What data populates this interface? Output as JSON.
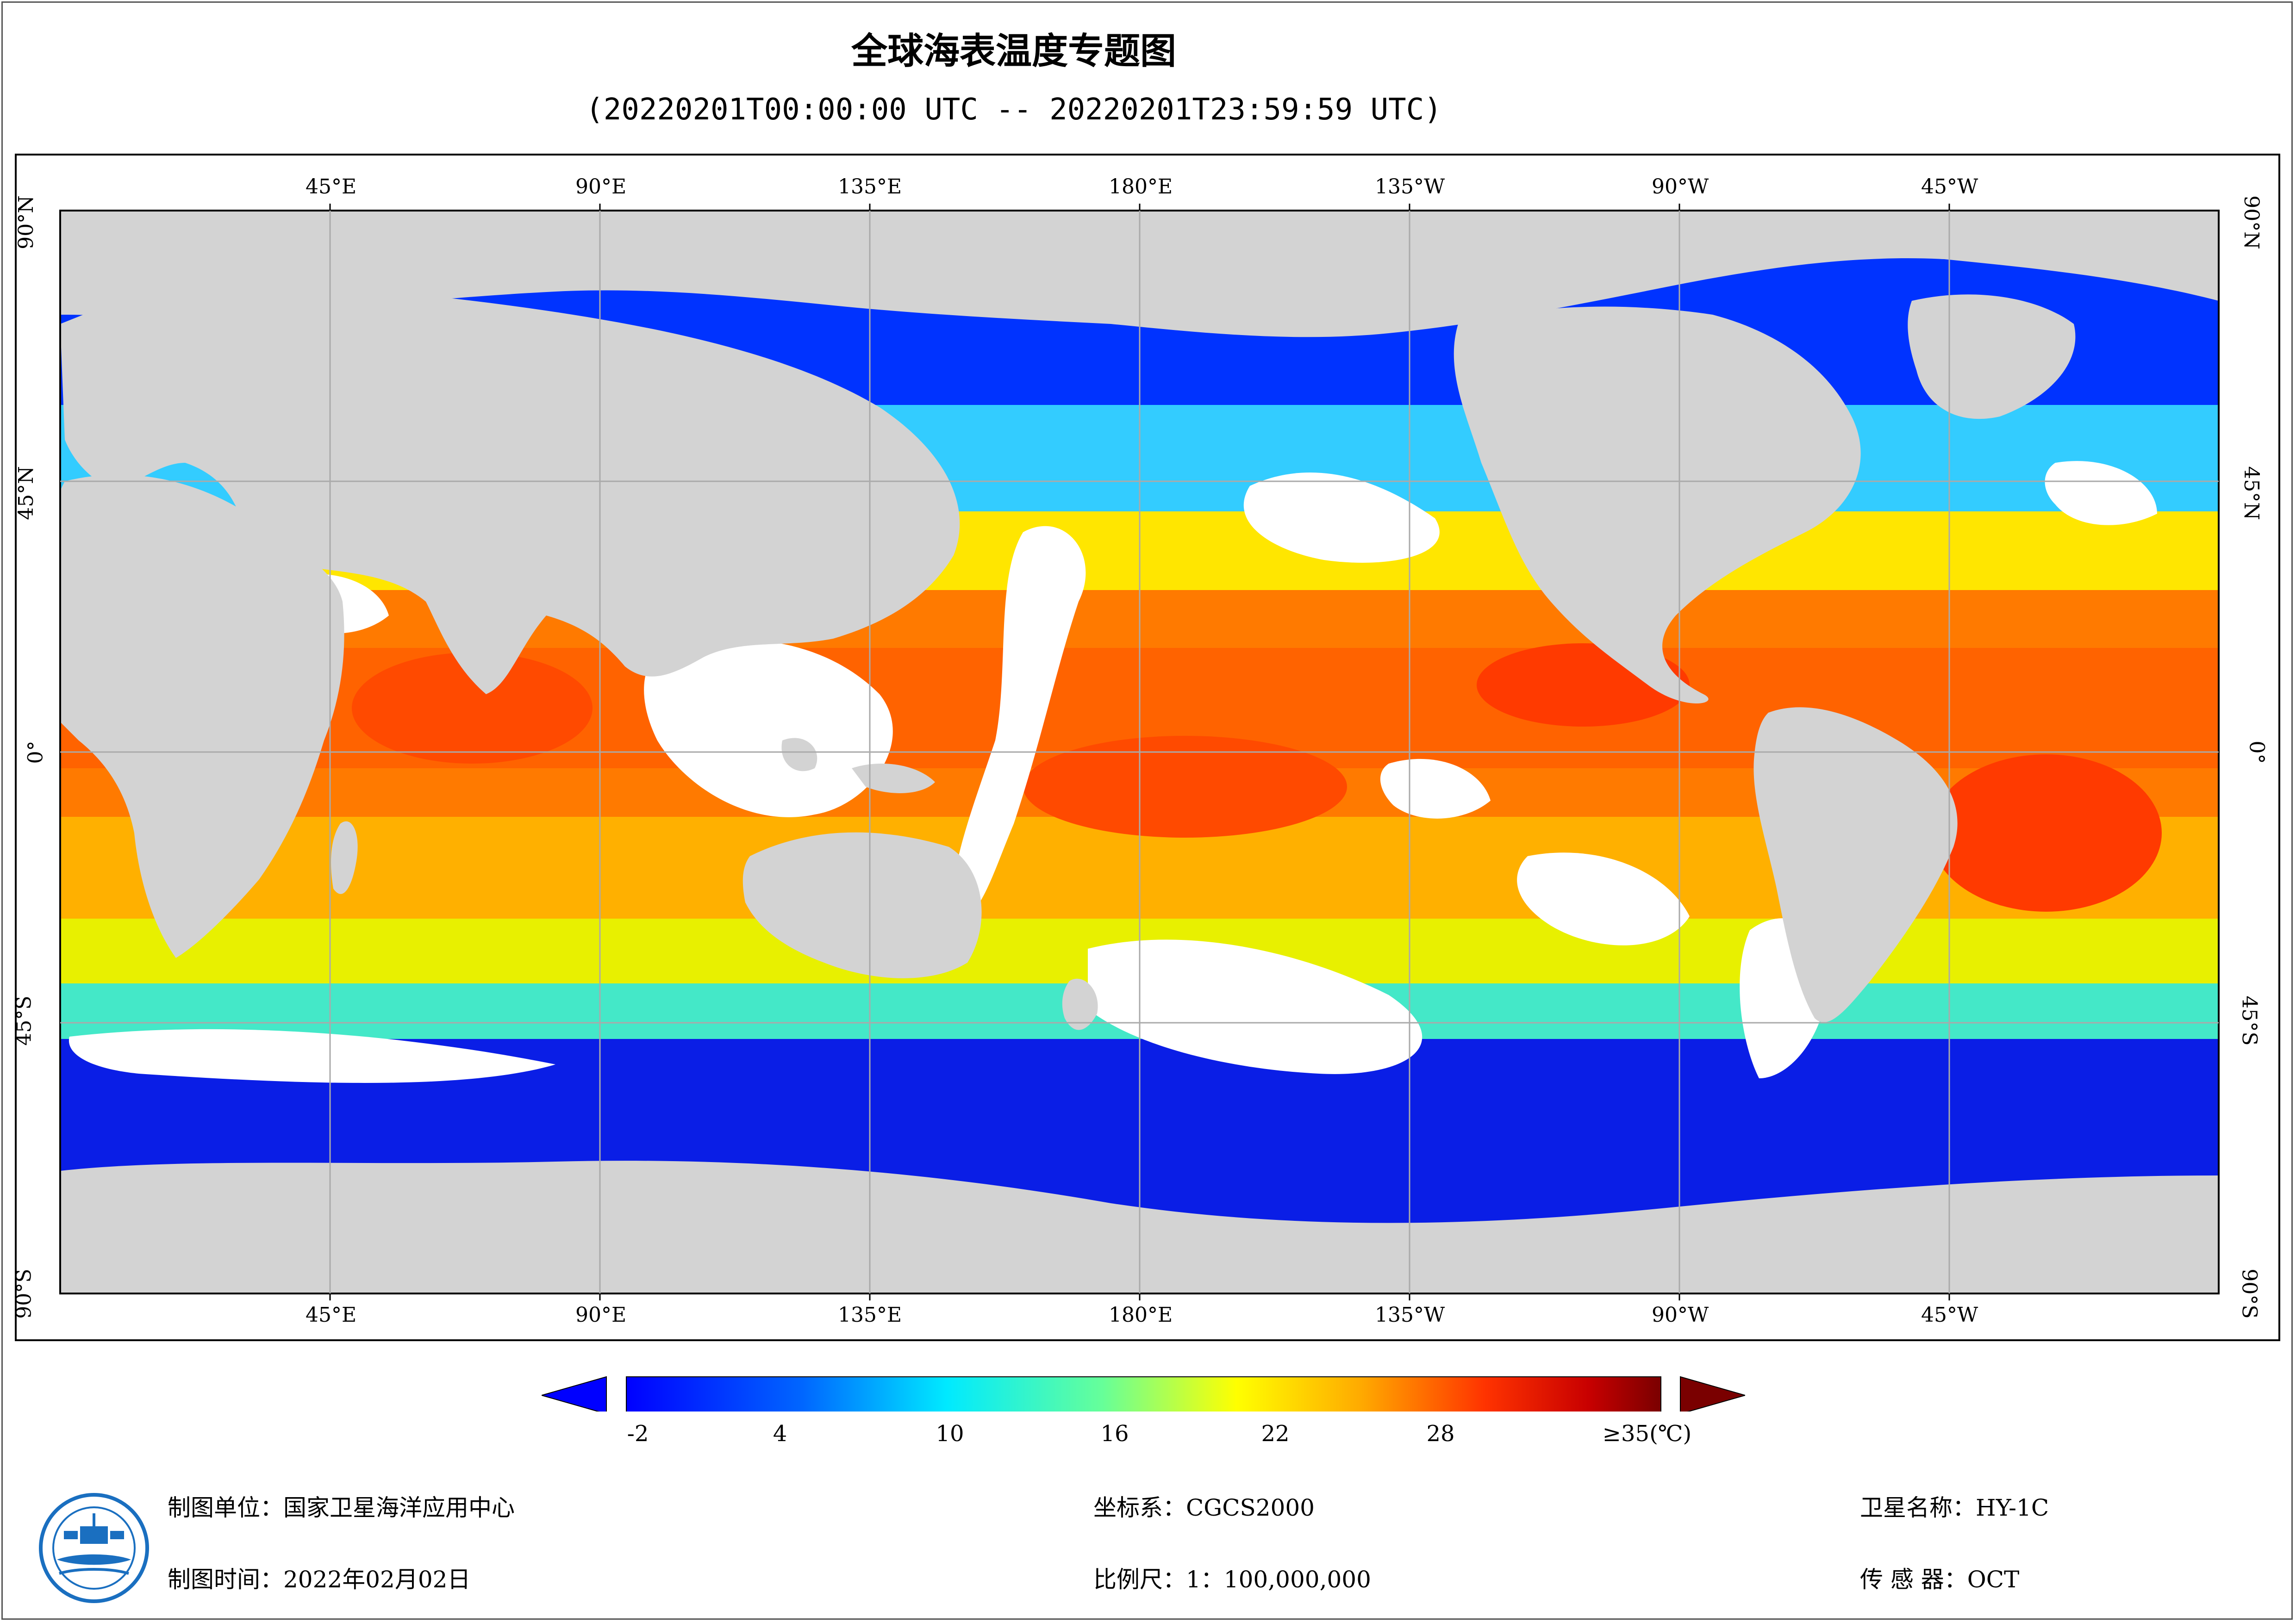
{
  "title": "全球海表温度专题图",
  "subtitle": "(20220201T00:00:00 UTC -- 20220201T23:59:59 UTC)",
  "top_lon_labels": [
    "45°E",
    "90°E",
    "135°E",
    "180°E",
    "135°W",
    "90°W",
    "45°W"
  ],
  "bottom_lon_labels": [
    "45°E",
    "90°E",
    "135°E",
    "180°E",
    "135°W",
    "90°W",
    "45°W"
  ],
  "left_lat_labels": [
    "90°N",
    "45°N",
    "0°",
    "45°S",
    "90°S"
  ],
  "right_lat_labels": [
    "90°N",
    "45°N",
    "0°",
    "45°S",
    "90°S"
  ],
  "colorbar": {
    "ticks": [
      "-2",
      "4",
      "10",
      "16",
      "22",
      "28",
      "≥35(℃)"
    ],
    "min": -2,
    "max": 35,
    "colors": {
      "under": "#0000ff",
      "over": "#7a0000",
      "land": "#d3d3d3",
      "cloud": "#ffffff",
      "grid": "#aaaaaa"
    }
  },
  "footer": {
    "unit": "制图单位：国家卫星海洋应用中心",
    "time": "制图时间：2022年02月02日",
    "coord": "坐标系：CGCS2000",
    "scale": "比例尺：1：100,000,000",
    "satellite": "卫星名称：HY-1C",
    "sensor": "传  感  器：OCT"
  },
  "icons": {
    "logo": "nsoas-logo-icon"
  }
}
